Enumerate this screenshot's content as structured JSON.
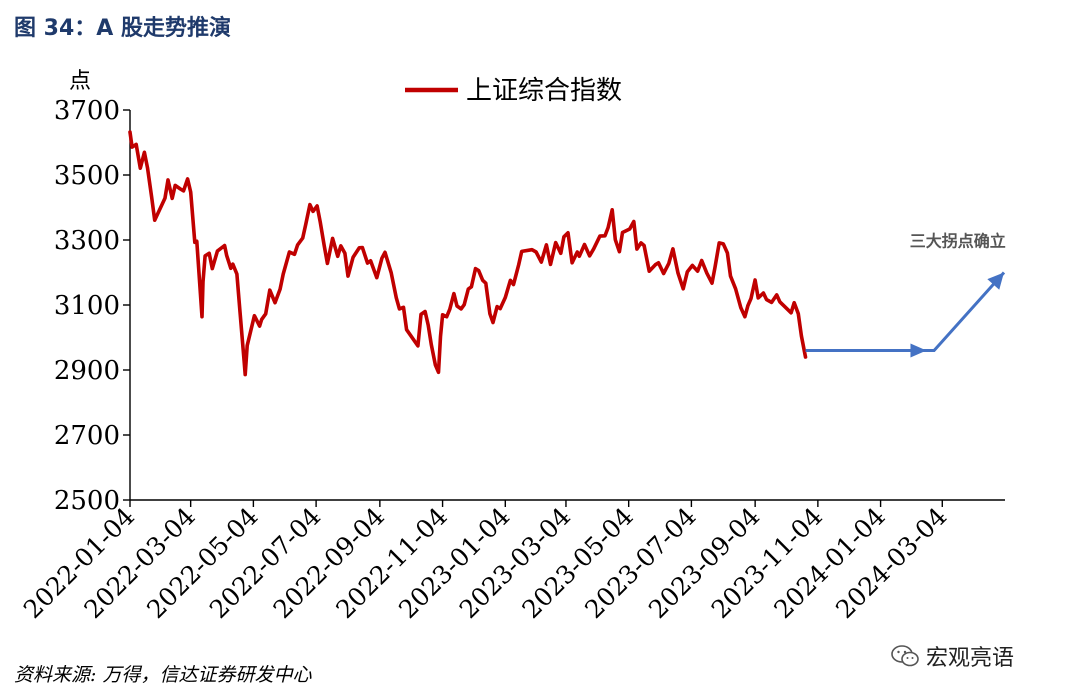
{
  "figure_title": "图 34：A 股走势推演",
  "source_note": "资料来源: 万得，信达证券研发中心",
  "watermark": "宏观亮语",
  "colors": {
    "series": "#c00000",
    "arrow": "#4472c4",
    "title": "#1f3a6b"
  },
  "chart_data": {
    "type": "line",
    "title": "",
    "ylabel": "点",
    "xlabel": "",
    "ylim": [
      2500,
      3700
    ],
    "yticks": [
      2500,
      2700,
      2900,
      3100,
      3300,
      3500,
      3700
    ],
    "xlim": [
      "2022-01-04",
      "2024-05-04"
    ],
    "xticks": [
      "2022-01-04",
      "2022-03-04",
      "2022-05-04",
      "2022-07-04",
      "2022-09-04",
      "2022-11-04",
      "2023-01-04",
      "2023-03-04",
      "2023-05-04",
      "2023-07-04",
      "2023-09-04",
      "2023-11-04",
      "2024-01-04",
      "2024-03-04"
    ],
    "legend": "top-center",
    "grid": false,
    "series": [
      {
        "name": "上证综合指数",
        "points": [
          [
            "2022-01-04",
            3632
          ],
          [
            "2022-01-06",
            3586
          ],
          [
            "2022-01-10",
            3594
          ],
          [
            "2022-01-14",
            3521
          ],
          [
            "2022-01-18",
            3570
          ],
          [
            "2022-01-21",
            3522
          ],
          [
            "2022-01-25",
            3433
          ],
          [
            "2022-01-28",
            3361
          ],
          [
            "2022-02-07",
            3429
          ],
          [
            "2022-02-10",
            3485
          ],
          [
            "2022-02-14",
            3428
          ],
          [
            "2022-02-17",
            3468
          ],
          [
            "2022-02-22",
            3457
          ],
          [
            "2022-02-25",
            3451
          ],
          [
            "2022-03-01",
            3488
          ],
          [
            "2022-03-04",
            3447
          ],
          [
            "2022-03-08",
            3293
          ],
          [
            "2022-03-10",
            3296
          ],
          [
            "2022-03-15",
            3064
          ],
          [
            "2022-03-16",
            3171
          ],
          [
            "2022-03-18",
            3251
          ],
          [
            "2022-03-22",
            3259
          ],
          [
            "2022-03-25",
            3212
          ],
          [
            "2022-03-30",
            3266
          ],
          [
            "2022-04-06",
            3283
          ],
          [
            "2022-04-08",
            3252
          ],
          [
            "2022-04-12",
            3213
          ],
          [
            "2022-04-14",
            3226
          ],
          [
            "2022-04-18",
            3195
          ],
          [
            "2022-04-21",
            3079
          ],
          [
            "2022-04-25",
            2928
          ],
          [
            "2022-04-26",
            2886
          ],
          [
            "2022-04-28",
            2975
          ],
          [
            "2022-05-05",
            3067
          ],
          [
            "2022-05-10",
            3035
          ],
          [
            "2022-05-12",
            3055
          ],
          [
            "2022-05-16",
            3073
          ],
          [
            "2022-05-20",
            3146
          ],
          [
            "2022-05-25",
            3107
          ],
          [
            "2022-05-30",
            3149
          ],
          [
            "2022-06-02",
            3195
          ],
          [
            "2022-06-08",
            3263
          ],
          [
            "2022-06-13",
            3256
          ],
          [
            "2022-06-16",
            3285
          ],
          [
            "2022-06-21",
            3306
          ],
          [
            "2022-06-24",
            3349
          ],
          [
            "2022-06-28",
            3409
          ],
          [
            "2022-07-01",
            3388
          ],
          [
            "2022-07-05",
            3405
          ],
          [
            "2022-07-08",
            3356
          ],
          [
            "2022-07-12",
            3281
          ],
          [
            "2022-07-15",
            3228
          ],
          [
            "2022-07-20",
            3305
          ],
          [
            "2022-07-25",
            3250
          ],
          [
            "2022-07-28",
            3282
          ],
          [
            "2022-08-01",
            3259
          ],
          [
            "2022-08-04",
            3189
          ],
          [
            "2022-08-09",
            3247
          ],
          [
            "2022-08-15",
            3276
          ],
          [
            "2022-08-18",
            3277
          ],
          [
            "2022-08-23",
            3229
          ],
          [
            "2022-08-26",
            3236
          ],
          [
            "2022-09-01",
            3184
          ],
          [
            "2022-09-06",
            3244
          ],
          [
            "2022-09-09",
            3262
          ],
          [
            "2022-09-15",
            3199
          ],
          [
            "2022-09-20",
            3122
          ],
          [
            "2022-09-23",
            3088
          ],
          [
            "2022-09-27",
            3093
          ],
          [
            "2022-09-30",
            3024
          ],
          [
            "2022-10-11",
            2974
          ],
          [
            "2022-10-14",
            3071
          ],
          [
            "2022-10-18",
            3080
          ],
          [
            "2022-10-21",
            3038
          ],
          [
            "2022-10-24",
            2978
          ],
          [
            "2022-10-28",
            2915
          ],
          [
            "2022-10-31",
            2893
          ],
          [
            "2022-11-02",
            3003
          ],
          [
            "2022-11-04",
            3070
          ],
          [
            "2022-11-08",
            3064
          ],
          [
            "2022-11-11",
            3087
          ],
          [
            "2022-11-15",
            3135
          ],
          [
            "2022-11-18",
            3097
          ],
          [
            "2022-11-22",
            3088
          ],
          [
            "2022-11-25",
            3101
          ],
          [
            "2022-11-29",
            3149
          ],
          [
            "2022-12-02",
            3156
          ],
          [
            "2022-12-06",
            3212
          ],
          [
            "2022-12-09",
            3206
          ],
          [
            "2022-12-13",
            3176
          ],
          [
            "2022-12-16",
            3167
          ],
          [
            "2022-12-20",
            3073
          ],
          [
            "2022-12-23",
            3046
          ],
          [
            "2022-12-27",
            3095
          ],
          [
            "2022-12-30",
            3089
          ],
          [
            "2023-01-04",
            3123
          ],
          [
            "2023-01-09",
            3176
          ],
          [
            "2023-01-12",
            3163
          ],
          [
            "2023-01-17",
            3224
          ],
          [
            "2023-01-20",
            3265
          ],
          [
            "2023-01-30",
            3270
          ],
          [
            "2023-02-03",
            3263
          ],
          [
            "2023-02-08",
            3232
          ],
          [
            "2023-02-13",
            3285
          ],
          [
            "2023-02-17",
            3225
          ],
          [
            "2023-02-22",
            3292
          ],
          [
            "2023-02-27",
            3259
          ],
          [
            "2023-03-02",
            3310
          ],
          [
            "2023-03-06",
            3322
          ],
          [
            "2023-03-10",
            3230
          ],
          [
            "2023-03-15",
            3263
          ],
          [
            "2023-03-17",
            3250
          ],
          [
            "2023-03-22",
            3286
          ],
          [
            "2023-03-27",
            3251
          ],
          [
            "2023-03-31",
            3273
          ],
          [
            "2023-04-06",
            3312
          ],
          [
            "2023-04-11",
            3313
          ],
          [
            "2023-04-14",
            3338
          ],
          [
            "2023-04-18",
            3393
          ],
          [
            "2023-04-21",
            3301
          ],
          [
            "2023-04-25",
            3264
          ],
          [
            "2023-04-28",
            3323
          ],
          [
            "2023-05-05",
            3334
          ],
          [
            "2023-05-09",
            3357
          ],
          [
            "2023-05-12",
            3272
          ],
          [
            "2023-05-16",
            3291
          ],
          [
            "2023-05-19",
            3283
          ],
          [
            "2023-05-24",
            3204
          ],
          [
            "2023-05-30",
            3224
          ],
          [
            "2023-06-02",
            3230
          ],
          [
            "2023-06-07",
            3197
          ],
          [
            "2023-06-12",
            3228
          ],
          [
            "2023-06-16",
            3273
          ],
          [
            "2023-06-21",
            3198
          ],
          [
            "2023-06-26",
            3150
          ],
          [
            "2023-06-30",
            3202
          ],
          [
            "2023-07-05",
            3222
          ],
          [
            "2023-07-10",
            3204
          ],
          [
            "2023-07-14",
            3237
          ],
          [
            "2023-07-19",
            3198
          ],
          [
            "2023-07-24",
            3167
          ],
          [
            "2023-07-27",
            3216
          ],
          [
            "2023-07-31",
            3291
          ],
          [
            "2023-08-04",
            3288
          ],
          [
            "2023-08-08",
            3260
          ],
          [
            "2023-08-11",
            3189
          ],
          [
            "2023-08-16",
            3150
          ],
          [
            "2023-08-21",
            3092
          ],
          [
            "2023-08-25",
            3064
          ],
          [
            "2023-08-28",
            3098
          ],
          [
            "2023-08-31",
            3120
          ],
          [
            "2023-09-04",
            3177
          ],
          [
            "2023-09-07",
            3122
          ],
          [
            "2023-09-12",
            3137
          ],
          [
            "2023-09-15",
            3117
          ],
          [
            "2023-09-20",
            3108
          ],
          [
            "2023-09-25",
            3131
          ],
          [
            "2023-09-28",
            3110
          ],
          [
            "2023-10-09",
            3076
          ],
          [
            "2023-10-12",
            3107
          ],
          [
            "2023-10-16",
            3073
          ],
          [
            "2023-10-19",
            3005
          ],
          [
            "2023-10-23",
            2940
          ]
        ]
      }
    ],
    "annotations": [
      {
        "type": "arrow",
        "text": "三大拐点确立",
        "path": [
          [
            "2023-10-23",
            2960
          ],
          [
            "2024-02-04",
            2960
          ],
          [
            "2024-02-25",
            2960
          ],
          [
            "2024-05-03",
            3200
          ]
        ],
        "label_at": [
          "2024-03-19",
          3280
        ]
      }
    ]
  }
}
